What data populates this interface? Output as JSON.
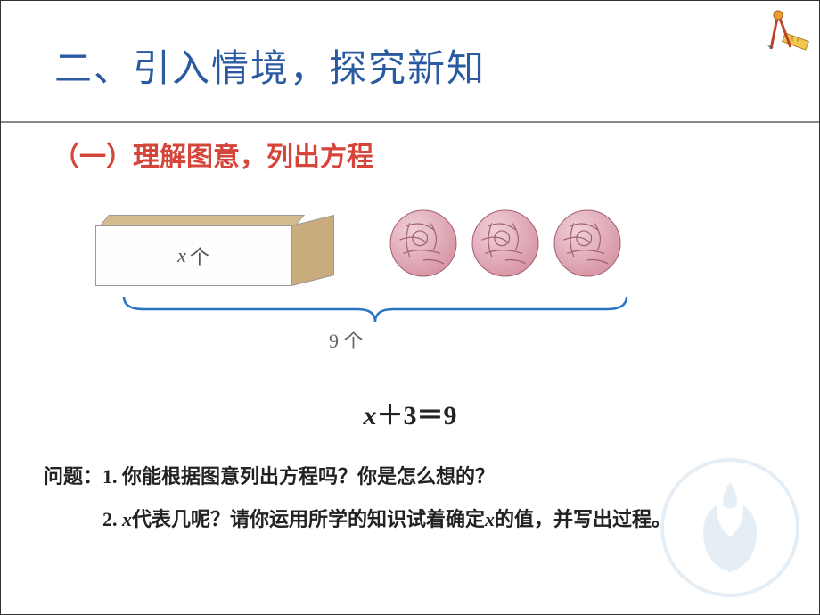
{
  "title": "二、引入情境，探究新知",
  "subtitle": "（一）理解图意，列出方程",
  "box_label_var": "x",
  "box_label_suffix": " 个",
  "bracket_label": "9 个",
  "equation": {
    "var": "x",
    "rest": "＋3＝9"
  },
  "questions": {
    "prefix": "问题：",
    "q1": "1. 你能根据图意列出方程吗？你是怎么想的？",
    "q2_p1": "2. ",
    "q2_var1": "x",
    "q2_p2": "代表几呢？请你运用所学的知识试着确定",
    "q2_var2": "x",
    "q2_p3": "的值，并写出过程。"
  },
  "colors": {
    "title": "#2a5aa0",
    "subtitle": "#d4453a",
    "box_top": "#d4bb8f",
    "box_side": "#c8ac7c",
    "ball_fill": "#d898a8",
    "ball_stroke": "#a06070",
    "bracket": "#2a74c4",
    "text": "#222222"
  },
  "diagram": {
    "ball_count": 3,
    "ball_radius": 38,
    "bracket_width": 570
  },
  "icon": {
    "compass_color": "#e8a030",
    "ruler_color": "#f0c850"
  }
}
